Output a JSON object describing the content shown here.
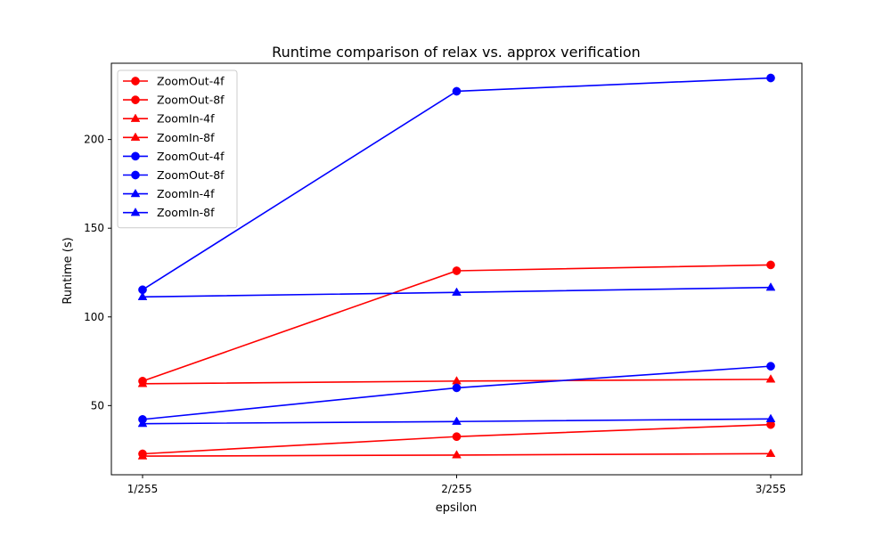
{
  "chart_data": {
    "type": "line",
    "title": "Runtime comparison of relax vs. approx verification",
    "xlabel": "epsilon",
    "ylabel": "Runtime (s)",
    "categories": [
      "1/255",
      "2/255",
      "3/255"
    ],
    "ylim": [
      11,
      243
    ],
    "yticks": [
      50,
      100,
      150,
      200
    ],
    "grid": false,
    "legend_position": "top-left",
    "series": [
      {
        "name": "ZoomOut-4f",
        "color": "#ff0000",
        "marker": "circle",
        "values": [
          22.8,
          32.5,
          39.3
        ]
      },
      {
        "name": "ZoomOut-8f",
        "color": "#ff0000",
        "marker": "circle",
        "values": [
          63.8,
          126.0,
          129.3
        ]
      },
      {
        "name": "ZoomIn-4f",
        "color": "#ff0000",
        "marker": "triangle",
        "values": [
          21.5,
          22.1,
          22.9
        ]
      },
      {
        "name": "ZoomIn-8f",
        "color": "#ff0000",
        "marker": "triangle",
        "values": [
          62.3,
          63.8,
          64.8
        ]
      },
      {
        "name": "ZoomOut-4f",
        "color": "#0000ff",
        "marker": "circle",
        "values": [
          42.2,
          60.0,
          72.2
        ]
      },
      {
        "name": "ZoomOut-8f",
        "color": "#0000ff",
        "marker": "circle",
        "values": [
          115.3,
          227.2,
          234.7
        ]
      },
      {
        "name": "ZoomIn-4f",
        "color": "#0000ff",
        "marker": "triangle",
        "values": [
          39.8,
          41.0,
          42.5
        ]
      },
      {
        "name": "ZoomIn-8f",
        "color": "#0000ff",
        "marker": "triangle",
        "values": [
          111.3,
          113.8,
          116.6
        ]
      }
    ]
  }
}
